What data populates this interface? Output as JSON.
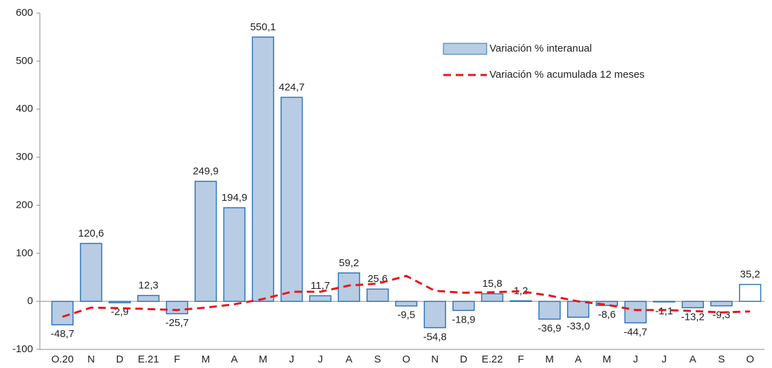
{
  "chart_data": {
    "type": "bar_line",
    "categories": [
      "O.20",
      "N",
      "D",
      "E.21",
      "F",
      "M",
      "A",
      "M",
      "J",
      "J",
      "A",
      "S",
      "O",
      "N",
      "D",
      "E.22",
      "F",
      "M",
      "A",
      "M",
      "J",
      "J",
      "A",
      "S",
      "O"
    ],
    "series": [
      {
        "name": "Variación % interanual",
        "type": "bar",
        "color": "#b8cce4",
        "stroke": "#2e75b6",
        "colors": [
          "#b8cce4",
          "#b8cce4",
          "#b8cce4",
          "#b8cce4",
          "#b8cce4",
          "#b8cce4",
          "#b8cce4",
          "#b8cce4",
          "#b8cce4",
          "#b8cce4",
          "#b8cce4",
          "#b8cce4",
          "#b8cce4",
          "#b8cce4",
          "#b8cce4",
          "#b8cce4",
          "#b8cce4",
          "#b8cce4",
          "#b8cce4",
          "#b8cce4",
          "#b8cce4",
          "#b8cce4",
          "#b8cce4",
          "#b8cce4",
          "#ffffff"
        ],
        "values": [
          -48.7,
          120.6,
          -2.9,
          12.3,
          -25.7,
          249.9,
          194.9,
          550.1,
          424.7,
          11.7,
          59.2,
          25.6,
          -9.5,
          -54.8,
          -18.9,
          15.8,
          1.2,
          -36.9,
          -33.0,
          -8.6,
          -44.7,
          -1.1,
          -13.2,
          -9.3,
          35.2
        ],
        "value_labels": [
          "-48,7",
          "120,6",
          "-2,9",
          "12,3",
          "-25,7",
          "249,9",
          "194,9",
          "550,1",
          "424,7",
          "11,7",
          "59,2",
          "25,6",
          "-9,5",
          "-54,8",
          "-18,9",
          "15,8",
          "1,2",
          "-36,9",
          "-33,0",
          "-8,6",
          "-44,7",
          "-1,1",
          "-13,2",
          "-9,3",
          "35,2"
        ]
      },
      {
        "name": "Variación % acumulada 12 meses",
        "type": "line",
        "color": "#e8141b",
        "dashed": true,
        "values": [
          -32,
          -13,
          -14,
          -16,
          -18,
          -13,
          -6,
          5,
          20,
          20,
          33,
          37,
          53,
          22,
          18,
          19,
          21,
          12,
          0,
          -7,
          -18,
          -18,
          -20,
          -23,
          -21
        ]
      }
    ],
    "ylim": [
      -100,
      600
    ],
    "yticks": [
      -100,
      0,
      100,
      200,
      300,
      400,
      500,
      600
    ]
  }
}
